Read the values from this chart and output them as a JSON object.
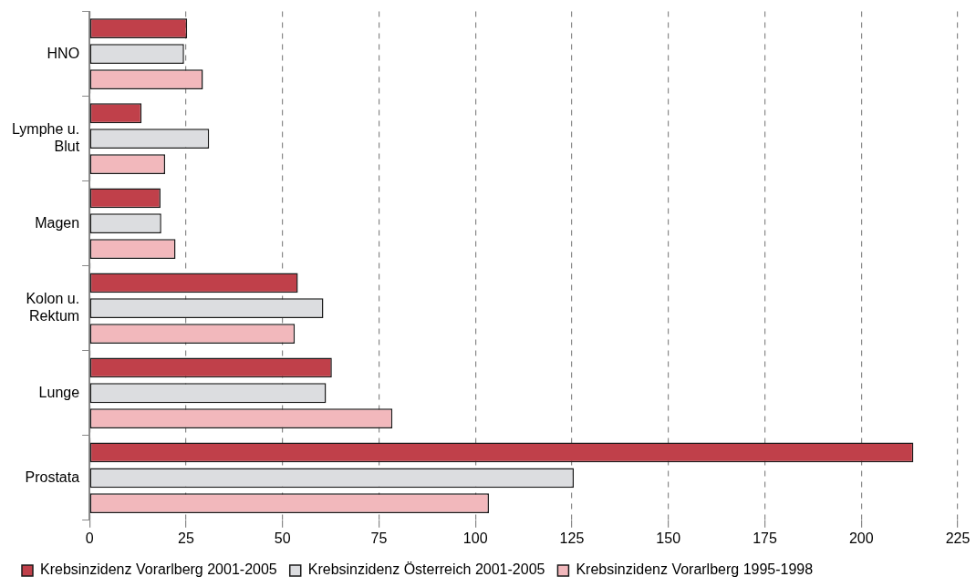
{
  "chart_data": {
    "type": "bar",
    "orientation": "horizontal",
    "categories": [
      "HNO",
      "Lymphe u. Blut",
      "Magen",
      "Kolon u. Rektum",
      "Lunge",
      "Prostata"
    ],
    "series": [
      {
        "name": "Krebsinzidenz Vorarlberg 2001-2005",
        "color": "#c0404a",
        "values": [
          25.3,
          13.5,
          18.4,
          54,
          62.8,
          213.5
        ]
      },
      {
        "name": "Krebsinzidenz Österreich 2001-2005",
        "color": "#dcdde0",
        "values": [
          24.5,
          31,
          18.6,
          60.6,
          61.3,
          125.5
        ]
      },
      {
        "name": "Krebsinzidenz Vorarlberg 1995-1998",
        "color": "#f2b8bc",
        "values": [
          29.4,
          19.6,
          22.3,
          53.2,
          78.5,
          103.5
        ]
      }
    ],
    "xlim": [
      0,
      225
    ],
    "xticks": [
      0,
      25,
      50,
      75,
      100,
      125,
      150,
      175,
      200,
      225
    ],
    "grid": "x",
    "legend": "bottom"
  }
}
